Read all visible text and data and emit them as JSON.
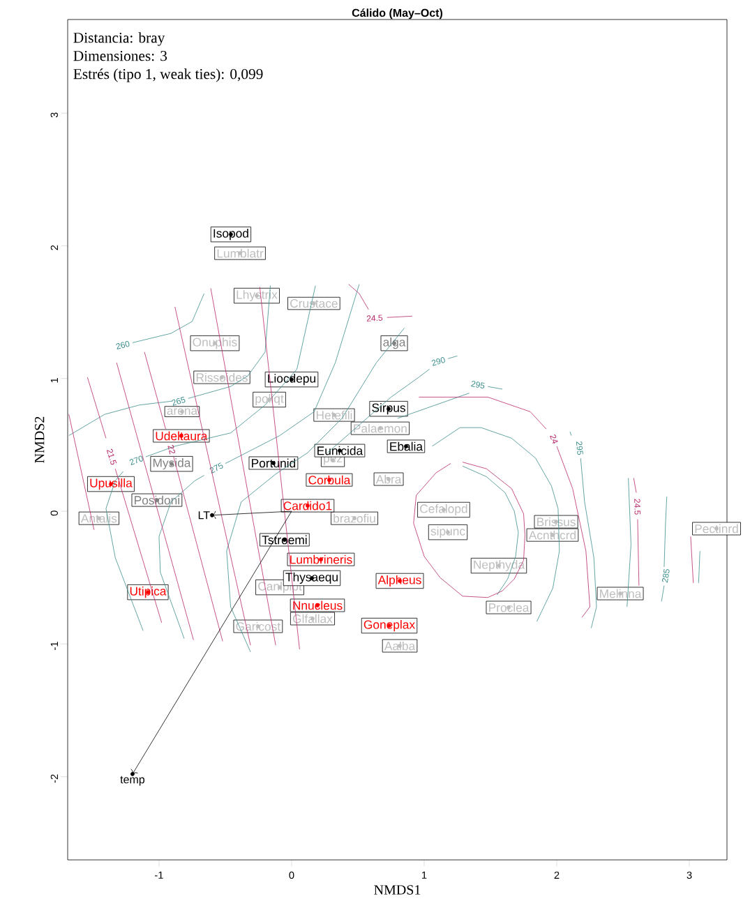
{
  "chart_data": {
    "type": "scatter",
    "title": "Cálido (May–Oct)",
    "xlabel": "NMDS1",
    "ylabel": "NMDS2",
    "annotations": [
      "Distancia: bray",
      "Dimensiones: 3",
      "Estrés (tipo 1, weak ties): 0,099",
      {
        "text": "LT",
        "x": -0.6,
        "y": -0.03
      },
      {
        "text": "temp",
        "x": -1.2,
        "y": -1.98
      }
    ],
    "xlim": [
      -1.689,
      3.284
    ],
    "ylim": [
      -2.627,
      3.705
    ],
    "xticks": [
      -1,
      0,
      1,
      2,
      3
    ],
    "yticks": [
      -2,
      -1,
      0,
      1,
      2,
      3
    ],
    "grid": false,
    "series": [
      {
        "type": "line",
        "color": "#3e8e8e",
        "name": "260",
        "x": [
          -1.2,
          -0.91,
          -0.75,
          -0.66
        ],
        "values": [
          1.27,
          1.34,
          1.43,
          1.64
        ]
      },
      {
        "type": "line",
        "color": "#3e8e8e",
        "name": "265",
        "x": [
          -0.78,
          -0.46,
          -0.33,
          -0.2,
          -0.16
        ],
        "values": [
          0.85,
          0.94,
          1.02,
          1.2,
          1.7
        ]
      },
      {
        "type": "line",
        "color": "#3e8e8e",
        "x": [
          -0.9,
          -1.15,
          -1.41,
          -1.68
        ],
        "values": [
          0.83,
          0.8,
          0.73,
          0.57
        ]
      },
      {
        "type": "line",
        "color": "#3e8e8e",
        "name": "270",
        "x": [
          -1.1,
          -0.88,
          -0.46,
          -0.2,
          0.04,
          0.18
        ],
        "values": [
          0.41,
          0.49,
          0.59,
          0.8,
          1.07,
          1.7
        ]
      },
      {
        "type": "line",
        "color": "#3e8e8e",
        "x": [
          -1.27,
          -1.33,
          -1.4,
          -1.33,
          -1.12
        ],
        "values": [
          0.3,
          0.23,
          0.02,
          -0.35,
          -0.9
        ]
      },
      {
        "type": "line",
        "color": "#3e8e8e",
        "name": "275",
        "x": [
          -0.5,
          -0.46,
          -0.09,
          0.17,
          0.33,
          0.51
        ],
        "values": [
          0.36,
          0.38,
          0.57,
          0.75,
          1.12,
          1.71
        ]
      },
      {
        "type": "line",
        "color": "#3e8e8e",
        "x": [
          -0.66,
          -0.73,
          -0.91,
          -1.0,
          -0.99,
          -0.81
        ],
        "values": [
          0.27,
          0.23,
          0.07,
          -0.19,
          -0.46,
          -0.96
        ]
      },
      {
        "type": "line",
        "color": "#3e8e8e",
        "x": [
          -0.31,
          -0.46,
          -0.49,
          -0.38,
          -0.12,
          0.12,
          0.38,
          0.64,
          0.85
        ],
        "values": [
          -1.06,
          -0.72,
          -0.3,
          0.07,
          0.28,
          0.44,
          0.7,
          1.12,
          1.38
        ]
      },
      {
        "type": "line",
        "color": "#3e8e8e",
        "name": "290",
        "x": [
          1.18,
          1.25
        ],
        "values": [
          1.15,
          1.17
        ]
      },
      {
        "type": "line",
        "color": "#3e8e8e",
        "x": [
          1.04,
          0.96,
          0.75,
          0.27
        ],
        "values": [
          1.07,
          1.01,
          0.86,
          0.44
        ]
      },
      {
        "type": "line",
        "color": "#3e8e8e",
        "name": "295",
        "x": [
          1.48,
          1.59
        ],
        "values": [
          0.94,
          0.92
        ]
      },
      {
        "type": "line",
        "color": "#3e8e8e",
        "x": [
          1.34,
          1.17,
          0.8
        ],
        "values": [
          0.89,
          0.83,
          0.7
        ]
      },
      {
        "type": "line",
        "color": "#3e8e8e",
        "x": [
          1.06,
          1.27,
          1.43,
          1.66,
          1.84,
          1.96,
          2.01,
          2.02,
          1.97,
          1.85
        ],
        "values": [
          0.49,
          0.63,
          0.63,
          0.55,
          0.4,
          0.19,
          0.02,
          -0.3,
          -0.58,
          -0.83
        ]
      },
      {
        "type": "line",
        "color": "#3e8e8e",
        "name": "295",
        "x": [
          2.18,
          2.21,
          2.28,
          2.3,
          2.26
        ],
        "values": [
          0.4,
          0.07,
          -0.35,
          -0.72,
          -0.88
        ]
      },
      {
        "type": "line",
        "color": "#3e8e8e",
        "x": [
          2.11,
          2.1
        ],
        "values": [
          0.57,
          0.6
        ]
      },
      {
        "type": "line",
        "color": "#3e8e8e",
        "x": [
          1.29,
          1.47,
          1.61,
          1.68,
          1.71,
          1.69,
          1.63,
          1.55
        ],
        "values": [
          0.34,
          0.26,
          0.14,
          0.0,
          -0.16,
          -0.34,
          -0.51,
          -0.63
        ]
      },
      {
        "type": "line",
        "color": "#3e8e8e",
        "x": [
          2.54,
          2.56,
          2.53
        ],
        "values": [
          0.25,
          -0.25,
          -0.72
        ]
      },
      {
        "type": "line",
        "color": "#3e8e8e",
        "name": "285",
        "x": [
          2.81,
          2.79
        ],
        "values": [
          -0.56,
          -0.68
        ]
      },
      {
        "type": "line",
        "color": "#3e8e8e",
        "x": [
          2.81,
          2.82,
          2.83
        ],
        "values": [
          -0.42,
          -0.1,
          0.11
        ]
      },
      {
        "type": "line",
        "color": "#3e8e8e",
        "x": [
          3.08,
          3.07
        ],
        "values": [
          -0.3,
          -0.54
        ]
      },
      {
        "type": "line",
        "color": "#b8286a",
        "x": [
          -1.68,
          -1.49
        ],
        "values": [
          0.73,
          -0.14
        ]
      },
      {
        "type": "line",
        "color": "#b8286a",
        "name": "21.5",
        "x": [
          -1.33,
          -0.98
        ],
        "values": [
          0.32,
          -0.84
        ]
      },
      {
        "type": "line",
        "color": "#b8286a",
        "x": [
          -1.4,
          -1.54
        ],
        "values": [
          0.55,
          1.01
        ]
      },
      {
        "type": "line",
        "color": "#b8286a",
        "x": [
          -1.32,
          -0.74
        ],
        "values": [
          1.12,
          -0.97
        ]
      },
      {
        "type": "line",
        "color": "#b8286a",
        "name": "22",
        "x": [
          -0.89,
          -0.52
        ],
        "values": [
          0.41,
          -0.98
        ]
      },
      {
        "type": "line",
        "color": "#b8286a",
        "x": [
          -0.95,
          -1.11
        ],
        "values": [
          0.62,
          1.2
        ]
      },
      {
        "type": "line",
        "color": "#b8286a",
        "x": [
          -0.88,
          -0.31
        ],
        "values": [
          1.54,
          -1.01
        ]
      },
      {
        "type": "line",
        "color": "#b8286a",
        "x": [
          -0.61,
          -0.12
        ],
        "values": [
          1.68,
          -1.01
        ]
      },
      {
        "type": "line",
        "color": "#b8286a",
        "x": [
          -0.24,
          0.06
        ],
        "values": [
          1.69,
          -1.04
        ]
      },
      {
        "type": "line",
        "color": "#b8286a",
        "name": "24.5",
        "x": [
          0.72,
          0.91
        ],
        "values": [
          1.46,
          1.47
        ]
      },
      {
        "type": "line",
        "color": "#b8286a",
        "x": [
          0.58,
          0.51,
          0.43
        ],
        "values": [
          1.52,
          1.64,
          1.71
        ]
      },
      {
        "type": "line",
        "color": "#b8286a",
        "name": "24",
        "x": [
          2.0,
          2.12,
          2.22,
          2.25,
          2.19
        ],
        "values": [
          0.49,
          0.17,
          -0.3,
          -0.72,
          -0.8
        ]
      },
      {
        "type": "line",
        "color": "#b8286a",
        "x": [
          1.92,
          1.8,
          1.48,
          0.96
        ],
        "values": [
          0.62,
          0.75,
          0.86,
          0.86
        ]
      },
      {
        "type": "line",
        "color": "#b8286a",
        "x": [
          1.29,
          1.47,
          1.66,
          1.75,
          1.76,
          1.75,
          1.68,
          1.59,
          1.48,
          1.29,
          1.12,
          1.0,
          0.92,
          0.94,
          1.09,
          1.2
        ],
        "values": [
          0.37,
          0.32,
          0.17,
          -0.02,
          -0.18,
          -0.37,
          -0.51,
          -0.6,
          -0.65,
          -0.64,
          -0.5,
          -0.34,
          -0.09,
          0.12,
          0.29,
          0.36
        ]
      },
      {
        "type": "line",
        "color": "#b8286a",
        "name": "24.5",
        "x": [
          2.61,
          2.62
        ],
        "values": [
          -0.06,
          -0.56
        ]
      },
      {
        "type": "line",
        "color": "#b8286a",
        "x": [
          2.6,
          2.58
        ],
        "values": [
          0.14,
          0.25
        ]
      },
      {
        "type": "line",
        "color": "#b8286a",
        "x": [
          3.01,
          3.03
        ],
        "values": [
          -0.19,
          -0.54
        ]
      },
      {
        "color": "#bebebe",
        "x": [
          -0.389,
          -0.263,
          0.168,
          -0.579,
          -0.526,
          -0.168,
          -0.826,
          0.321,
          0.668,
          0.311,
          0.732,
          1.147,
          0.474,
          1.179,
          1.995,
          1.968,
          3.205,
          1.563,
          2.479,
          1.637,
          -0.089,
          0.158,
          -0.253,
          0.816,
          -1.453
        ],
        "values": [
          1.944,
          1.624,
          1.566,
          1.266,
          1.009,
          0.841,
          0.751,
          0.725,
          0.625,
          0.384,
          0.242,
          0.011,
          -0.053,
          -0.158,
          -0.079,
          -0.179,
          -0.131,
          -0.41,
          -0.62,
          -0.725,
          -0.573,
          -0.809,
          -0.867,
          -1.014,
          -0.053
        ],
        "value_labels": [
          "Lumblatr",
          "Lhystrix",
          "Crustace",
          "Onuphis",
          "Rissoides",
          "poliqt",
          "arena",
          "Hetefili",
          "Palaemon",
          "pez",
          "Abra",
          "Cefalopd",
          "brazofiu",
          "sipunc",
          "Brissus",
          "Acnthcrd",
          "Pectinrd",
          "Nepthyda",
          "Melinna",
          "Proclea",
          "Canlplpt",
          "Glfallax",
          "Garicost",
          "Aalba",
          "Antalis"
        ]
      },
      {
        "color": "#000000",
        "x": [
          -0.6,
          -1.2
        ],
        "values": [
          -0.03,
          -1.98
        ]
      },
      {
        "color": "#808080",
        "x": [
          -0.905,
          -1.016,
          0.774
        ],
        "values": [
          0.357,
          0.084,
          1.266
        ],
        "value_labels": [
          "Mysida",
          "Posidoni",
          "alga"
        ]
      },
      {
        "color": "#000000",
        "x": [
          -0.458,
          0.0,
          0.732,
          0.863,
          0.363,
          -0.137,
          -0.053,
          0.153
        ],
        "values": [
          2.086,
          0.993,
          0.772,
          0.489,
          0.457,
          0.363,
          -0.215,
          -0.504
        ],
        "value_labels": [
          "Isopod",
          "Liocdepu",
          "Sirpus",
          "Ebalia",
          "Eunicida",
          "Portunid",
          "Tstroemi",
          "Thysaequ"
        ]
      },
      {
        "color": "#ff0000",
        "x": [
          -0.832,
          -1.363,
          0.284,
          0.121,
          0.221,
          0.816,
          0.195,
          0.737,
          -1.084
        ],
        "values": [
          0.568,
          0.205,
          0.236,
          0.042,
          -0.363,
          -0.525,
          -0.709,
          -0.862,
          -0.61
        ],
        "value_labels": [
          "Udeltaura",
          "Upusilla",
          "Corbula",
          "Cardido1",
          "Lumbrineris",
          "Alpheus",
          "Nnucleus",
          "Goneplax",
          "Utipica"
        ]
      }
    ]
  }
}
